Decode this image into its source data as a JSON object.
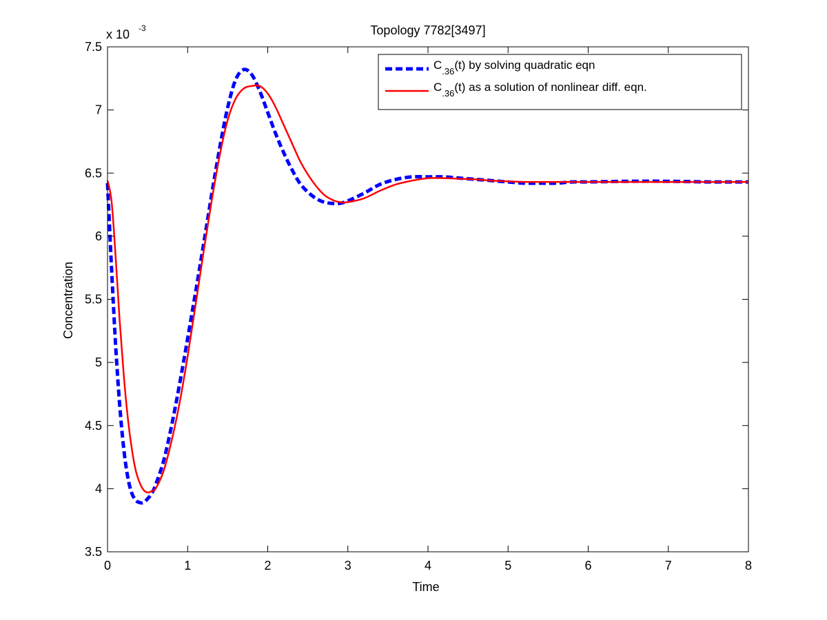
{
  "chart_data": {
    "type": "line",
    "title": "Topology 7782[3497]",
    "xlabel": "Time",
    "ylabel": "Concentration",
    "y_multiplier": {
      "prefix": "x 10",
      "exponent": "-3"
    },
    "xlim": [
      0,
      8
    ],
    "ylim": [
      3.5,
      7.5
    ],
    "x_ticks": [
      0,
      1,
      2,
      3,
      4,
      5,
      6,
      7,
      8
    ],
    "x_tick_labels": [
      "0",
      "1",
      "2",
      "3",
      "4",
      "5",
      "6",
      "7",
      "8"
    ],
    "y_ticks": [
      3.5,
      4,
      4.5,
      5,
      5.5,
      6,
      6.5,
      7,
      7.5
    ],
    "y_tick_labels": [
      "3.5",
      "4",
      "4.5",
      "5",
      "5.5",
      "6",
      "6.5",
      "7",
      "7.5"
    ],
    "grid": false,
    "legend_position": "top-right",
    "series": [
      {
        "name_main": "C",
        "name_sub": ".36",
        "name_rest": "(t) by solving quadratic eqn",
        "color": "#0000ff",
        "style": "dashed",
        "x": [
          0,
          0.05,
          0.1,
          0.15,
          0.2,
          0.25,
          0.3,
          0.35,
          0.4,
          0.45,
          0.5,
          0.55,
          0.6,
          0.7,
          0.8,
          0.9,
          1.0,
          1.1,
          1.2,
          1.3,
          1.4,
          1.5,
          1.6,
          1.7,
          1.8,
          1.9,
          2.0,
          2.1,
          2.2,
          2.3,
          2.4,
          2.5,
          2.6,
          2.7,
          2.8,
          2.9,
          3.0,
          3.2,
          3.4,
          3.6,
          3.8,
          4.0,
          4.2,
          4.4,
          4.6,
          4.8,
          5.0,
          5.2,
          5.4,
          5.6,
          5.8,
          6.0,
          6.5,
          7.0,
          7.5,
          8.0
        ],
        "y": [
          6.42,
          5.75,
          5.15,
          4.68,
          4.33,
          4.1,
          3.97,
          3.91,
          3.89,
          3.89,
          3.92,
          3.96,
          4.03,
          4.22,
          4.5,
          4.83,
          5.19,
          5.56,
          5.94,
          6.33,
          6.7,
          7.02,
          7.24,
          7.32,
          7.28,
          7.15,
          6.98,
          6.81,
          6.66,
          6.53,
          6.42,
          6.35,
          6.3,
          6.27,
          6.26,
          6.26,
          6.28,
          6.34,
          6.41,
          6.45,
          6.47,
          6.47,
          6.47,
          6.46,
          6.45,
          6.44,
          6.43,
          6.42,
          6.42,
          6.42,
          6.43,
          6.43,
          6.435,
          6.435,
          6.43,
          6.43
        ]
      },
      {
        "name_main": "C",
        "name_sub": ".36",
        "name_rest": "(t) as a solution of nonlinear diff. eqn.",
        "color": "#ff0000",
        "style": "solid",
        "x": [
          0,
          0.05,
          0.1,
          0.15,
          0.2,
          0.25,
          0.3,
          0.35,
          0.4,
          0.45,
          0.5,
          0.55,
          0.6,
          0.7,
          0.8,
          0.9,
          1.0,
          1.1,
          1.2,
          1.3,
          1.4,
          1.5,
          1.6,
          1.7,
          1.8,
          1.9,
          2.0,
          2.1,
          2.2,
          2.3,
          2.4,
          2.5,
          2.6,
          2.7,
          2.8,
          2.9,
          3.0,
          3.2,
          3.4,
          3.6,
          3.8,
          4.0,
          4.2,
          4.4,
          4.6,
          4.8,
          5.0,
          5.2,
          5.4,
          5.6,
          5.8,
          6.0,
          6.5,
          7.0,
          7.5,
          8.0
        ],
        "y": [
          6.44,
          6.28,
          5.85,
          5.35,
          4.92,
          4.58,
          4.33,
          4.15,
          4.05,
          3.99,
          3.97,
          3.98,
          4.0,
          4.14,
          4.38,
          4.68,
          5.05,
          5.46,
          5.88,
          6.28,
          6.64,
          6.92,
          7.09,
          7.17,
          7.19,
          7.19,
          7.13,
          7.02,
          6.88,
          6.74,
          6.6,
          6.49,
          6.4,
          6.33,
          6.29,
          6.27,
          6.27,
          6.3,
          6.36,
          6.41,
          6.44,
          6.46,
          6.46,
          6.455,
          6.45,
          6.44,
          6.435,
          6.43,
          6.43,
          6.43,
          6.43,
          6.43,
          6.43,
          6.43,
          6.43,
          6.43
        ]
      }
    ]
  }
}
